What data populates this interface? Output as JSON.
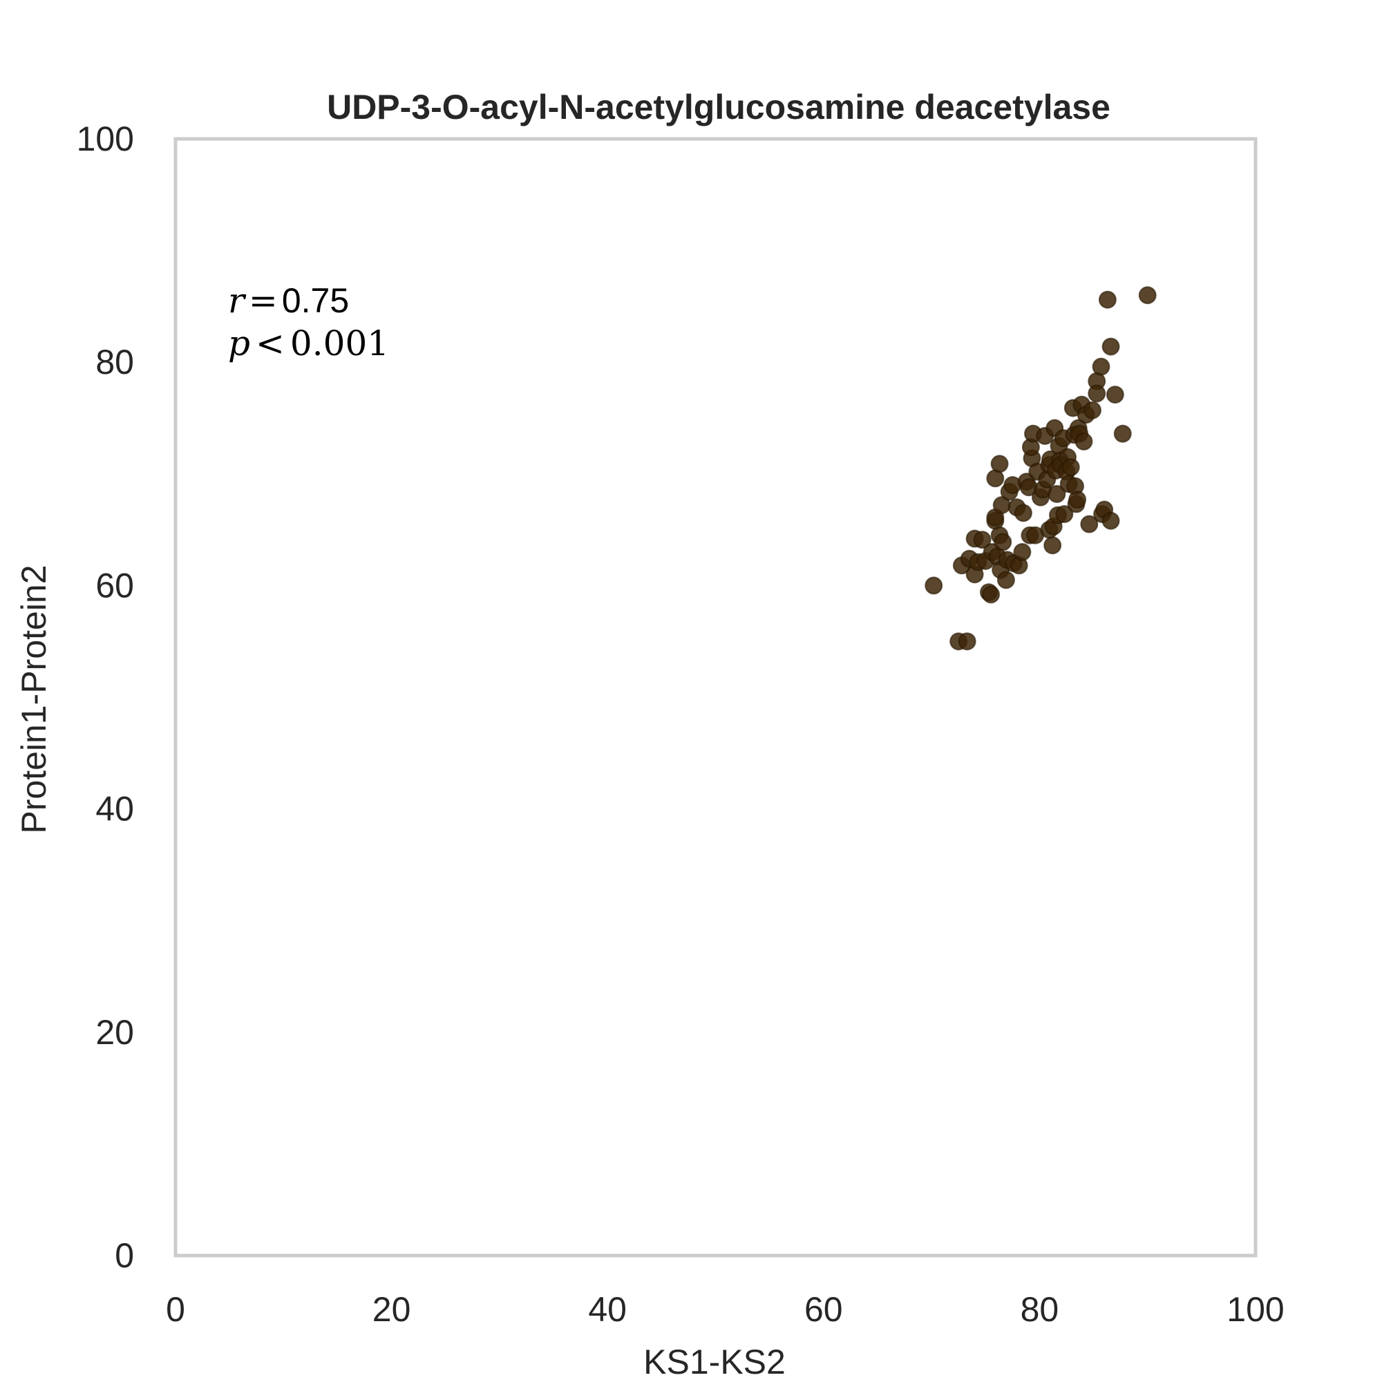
{
  "chart_data": {
    "type": "scatter",
    "title": "UDP-3-O-acyl-N-acetylglucosamine deacetylase",
    "xlabel": "KS1-KS2",
    "ylabel": "Protein1-Protein2",
    "xlim": [
      0,
      100
    ],
    "ylim": [
      0,
      100
    ],
    "xticks": [
      "0",
      "20",
      "40",
      "60",
      "80",
      "100"
    ],
    "yticks": [
      "0",
      "20",
      "40",
      "60",
      "80",
      "100"
    ],
    "grid": false,
    "point_color": "#3d2608",
    "annotation": {
      "r_label": "r",
      "r_eq": "=",
      "r_value": "0.75",
      "p_label": "p",
      "p_lt": "<",
      "p_value": "0.001"
    },
    "points": [
      [
        70.2,
        60.0
      ],
      [
        72.5,
        55.0
      ],
      [
        73.3,
        55.0
      ],
      [
        72.8,
        61.8
      ],
      [
        73.5,
        62.4
      ],
      [
        74.0,
        61.0
      ],
      [
        74.3,
        62.1
      ],
      [
        74.0,
        64.2
      ],
      [
        74.7,
        64.1
      ],
      [
        75.0,
        62.2
      ],
      [
        75.3,
        59.4
      ],
      [
        75.5,
        59.2
      ],
      [
        75.6,
        63.0
      ],
      [
        75.9,
        65.8
      ],
      [
        75.9,
        66.1
      ],
      [
        76.1,
        62.6
      ],
      [
        76.3,
        64.5
      ],
      [
        76.4,
        61.4
      ],
      [
        76.6,
        63.9
      ],
      [
        76.9,
        60.5
      ],
      [
        77.0,
        62.3
      ],
      [
        76.5,
        67.2
      ],
      [
        75.9,
        69.6
      ],
      [
        76.3,
        70.9
      ],
      [
        77.2,
        68.4
      ],
      [
        77.5,
        69.0
      ],
      [
        77.6,
        62.0
      ],
      [
        77.9,
        67.0
      ],
      [
        78.1,
        61.8
      ],
      [
        78.4,
        63.0
      ],
      [
        78.5,
        66.5
      ],
      [
        78.8,
        69.3
      ],
      [
        79.0,
        68.8
      ],
      [
        79.1,
        64.5
      ],
      [
        79.3,
        71.4
      ],
      [
        79.2,
        72.4
      ],
      [
        79.4,
        73.6
      ],
      [
        79.6,
        64.5
      ],
      [
        79.8,
        70.2
      ],
      [
        80.1,
        67.9
      ],
      [
        80.3,
        68.6
      ],
      [
        80.5,
        73.4
      ],
      [
        80.7,
        69.5
      ],
      [
        80.9,
        70.8
      ],
      [
        80.9,
        65.0
      ],
      [
        81.0,
        71.3
      ],
      [
        81.2,
        63.6
      ],
      [
        81.3,
        65.3
      ],
      [
        81.4,
        74.1
      ],
      [
        81.5,
        70.3
      ],
      [
        81.6,
        68.2
      ],
      [
        81.7,
        66.3
      ],
      [
        81.8,
        72.5
      ],
      [
        81.9,
        71.2
      ],
      [
        82.0,
        70.8
      ],
      [
        82.2,
        73.2
      ],
      [
        82.3,
        66.4
      ],
      [
        82.5,
        70.2
      ],
      [
        82.6,
        71.5
      ],
      [
        82.7,
        69.1
      ],
      [
        82.9,
        70.6
      ],
      [
        83.1,
        75.9
      ],
      [
        83.2,
        73.5
      ],
      [
        83.3,
        68.9
      ],
      [
        83.4,
        67.3
      ],
      [
        83.5,
        67.7
      ],
      [
        83.6,
        74.1
      ],
      [
        83.7,
        73.6
      ],
      [
        83.9,
        76.2
      ],
      [
        84.1,
        72.9
      ],
      [
        84.3,
        75.3
      ],
      [
        84.6,
        65.5
      ],
      [
        84.9,
        75.7
      ],
      [
        85.3,
        78.3
      ],
      [
        85.3,
        77.2
      ],
      [
        85.7,
        79.6
      ],
      [
        85.8,
        66.4
      ],
      [
        86.0,
        66.8
      ],
      [
        86.3,
        85.6
      ],
      [
        86.6,
        81.4
      ],
      [
        86.6,
        65.8
      ],
      [
        87.0,
        77.1
      ],
      [
        87.7,
        73.6
      ],
      [
        90.0,
        86.0
      ]
    ]
  }
}
